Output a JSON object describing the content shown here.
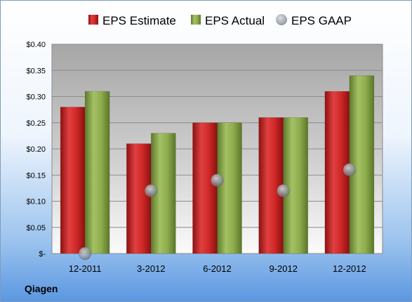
{
  "company": "Qiagen",
  "colors": {
    "estimate": "#cc2222",
    "actual": "#88a84a",
    "gaap": "#9aa0a8"
  },
  "chart_data": {
    "type": "bar",
    "categories": [
      "12-2011",
      "3-2012",
      "6-2012",
      "9-2012",
      "12-2012"
    ],
    "series": [
      {
        "name": "EPS Estimate",
        "kind": "bar",
        "values": [
          0.28,
          0.21,
          0.25,
          0.26,
          0.31
        ]
      },
      {
        "name": "EPS Actual",
        "kind": "bar",
        "values": [
          0.31,
          0.23,
          0.25,
          0.26,
          0.34
        ]
      },
      {
        "name": "EPS GAAP",
        "kind": "scatter",
        "values": [
          0.0,
          0.12,
          0.14,
          0.12,
          0.16
        ]
      }
    ],
    "yticks": [
      {
        "value": 0.4,
        "label": "$0.40"
      },
      {
        "value": 0.35,
        "label": "$0.35"
      },
      {
        "value": 0.3,
        "label": "$0.30"
      },
      {
        "value": 0.25,
        "label": "$0.25"
      },
      {
        "value": 0.2,
        "label": "$0.20"
      },
      {
        "value": 0.15,
        "label": "$0.15"
      },
      {
        "value": 0.1,
        "label": "$0.10"
      },
      {
        "value": 0.05,
        "label": "$0.05"
      },
      {
        "value": 0.0,
        "label": "$-"
      }
    ],
    "ylim": [
      0,
      0.4
    ],
    "grid": true,
    "legend_position": "top"
  }
}
